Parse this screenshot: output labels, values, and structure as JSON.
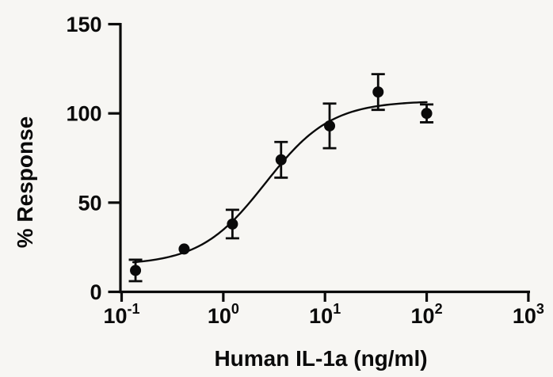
{
  "window": {
    "background_color": "#f7f6f3",
    "foreground_color": "#0a0a0a"
  },
  "chart_data": {
    "type": "scatter",
    "subtype": "dose-response-curve",
    "title": "",
    "xlabel": "Human IL-1a (ng/ml)",
    "ylabel": "% Response",
    "x_scale": "log10",
    "x_tick_base": "10",
    "x_tick_exponents": [
      "-1",
      "0",
      "1",
      "2",
      "3"
    ],
    "xlim": [
      0.1,
      1000
    ],
    "y_ticks": [
      0,
      50,
      100,
      150
    ],
    "ylim": [
      0,
      150
    ],
    "grid": false,
    "legend": "none",
    "marker_color": "#0a0a0a",
    "curve_color": "#0a0a0a",
    "error_bar_color": "#0a0a0a",
    "points": [
      {
        "x": 0.137,
        "y": 12,
        "err": 6
      },
      {
        "x": 0.412,
        "y": 24,
        "err": 0
      },
      {
        "x": 1.23,
        "y": 38,
        "err": 8
      },
      {
        "x": 3.7,
        "y": 74,
        "err": 10
      },
      {
        "x": 11.1,
        "y": 93,
        "err": 12.5
      },
      {
        "x": 33.3,
        "y": 112,
        "err": 10
      },
      {
        "x": 100,
        "y": 100,
        "err": 5
      }
    ],
    "fit_curve": {
      "model": "4PL",
      "bottom": 15,
      "top": 107,
      "ec50": 2.6,
      "hill": 1.35,
      "x_start": 0.13,
      "x_end": 100
    }
  }
}
